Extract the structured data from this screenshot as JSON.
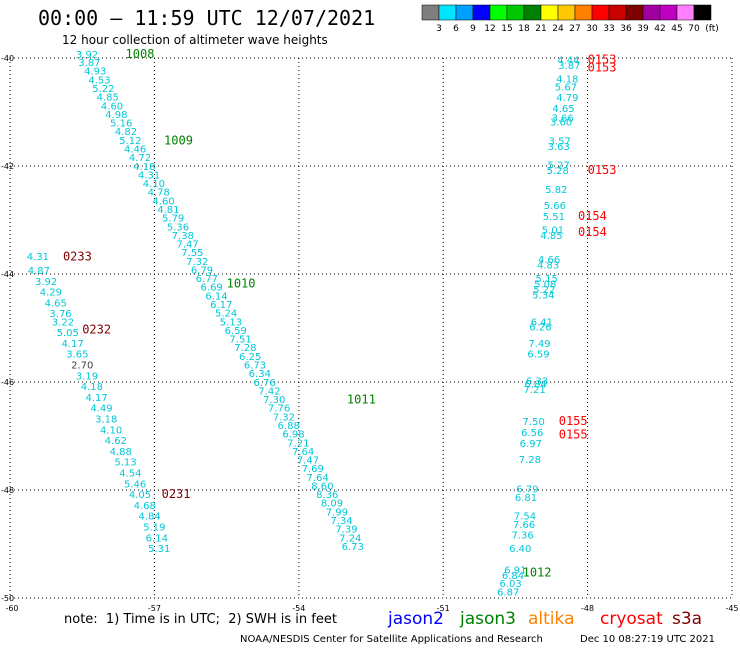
{
  "header": {
    "title": "00:00 – 11:59 UTC 12/07/2021",
    "subtitle": "12 hour collection of altimeter wave heights"
  },
  "colorbar": {
    "colors": [
      "#7f7f7f",
      "#00e5ff",
      "#00a0ff",
      "#0000ff",
      "#00ff00",
      "#00c800",
      "#008000",
      "#ffff00",
      "#ffc800",
      "#ff8000",
      "#ff0000",
      "#c80000",
      "#800000",
      "#a000a0",
      "#c000c0",
      "#ff80ff",
      "#000000"
    ],
    "labels": [
      "3",
      "6",
      "9",
      "12",
      "15",
      "18",
      "21",
      "24",
      "27",
      "30",
      "33",
      "36",
      "39",
      "42",
      "45",
      "70"
    ],
    "unit": "(ft)"
  },
  "note": "note:  1) Time is in UTC;  2) SWH is in feet",
  "satellites": [
    {
      "name": "jason2",
      "color": "#0000ff"
    },
    {
      "name": "jason3",
      "color": "#008000"
    },
    {
      "name": "altika",
      "color": "#ff8000"
    },
    {
      "name": "cryosat",
      "color": "#ff0000"
    },
    {
      "name": "s3a",
      "color": "#800000"
    }
  ],
  "footer": {
    "left": "NOAA/NESDIS Center for Satellite Applications and Research",
    "right": "Dec 10 08:27:19 UTC 2021"
  },
  "chart_data": {
    "type": "scatter",
    "xlim": [
      -60,
      -45
    ],
    "ylim": [
      -50,
      -40
    ],
    "xticks": [
      -60,
      -57,
      -54,
      -51,
      -48,
      -45
    ],
    "yticks": [
      -40,
      -42,
      -44,
      -46,
      -48,
      -50
    ],
    "xtick_labels": [
      "-60",
      "-57",
      "-54",
      "-51",
      "-48",
      "-45"
    ],
    "ytick_labels": [
      "-40",
      "-42",
      "-44",
      "-46",
      "-48",
      "-50"
    ],
    "grid": true,
    "point_color": "#00c8d8",
    "dark_point_color": "#404040",
    "tracks": [
      {
        "name": "jason3 track",
        "points": [
          [
            -58.4,
            -40.0,
            "3.92"
          ],
          [
            -58.35,
            -40.15,
            "3.87"
          ],
          [
            -58.23,
            -40.31,
            "4.93"
          ],
          [
            -58.14,
            -40.47,
            "4.53"
          ],
          [
            -58.06,
            -40.63,
            "5.22"
          ],
          [
            -57.97,
            -40.79,
            "4.85"
          ],
          [
            -57.88,
            -40.95,
            "4.60"
          ],
          [
            -57.79,
            -41.11,
            "4.98"
          ],
          [
            -57.69,
            -41.27,
            "5.16"
          ],
          [
            -57.59,
            -41.43,
            "4.82"
          ],
          [
            -57.5,
            -41.59,
            "5.12"
          ],
          [
            -57.4,
            -41.75,
            "4.46"
          ],
          [
            -57.3,
            -41.91,
            "4.72"
          ],
          [
            -57.21,
            -42.07,
            "4.18"
          ],
          [
            -57.11,
            -42.23,
            "4.31"
          ],
          [
            -57.01,
            -42.39,
            "4.10"
          ],
          [
            -56.91,
            -42.55,
            "4.78"
          ],
          [
            -56.81,
            -42.71,
            "4.60"
          ],
          [
            -56.71,
            -42.87,
            "4.81"
          ],
          [
            -56.61,
            -43.03,
            "5.79"
          ],
          [
            -56.51,
            -43.19,
            "5.36"
          ],
          [
            -56.41,
            -43.35,
            "7.38"
          ],
          [
            -56.31,
            -43.51,
            "7.47"
          ],
          [
            -56.21,
            -43.67,
            "7.55"
          ],
          [
            -56.11,
            -43.83,
            "7.32"
          ],
          [
            -56.01,
            -43.99,
            "6.79"
          ],
          [
            -55.91,
            -44.15,
            "6.77"
          ],
          [
            -55.81,
            -44.31,
            "6.69"
          ],
          [
            -55.71,
            -44.47,
            "6.14"
          ],
          [
            -55.61,
            -44.63,
            "6.17"
          ],
          [
            -55.51,
            -44.79,
            "5.24"
          ],
          [
            -55.41,
            -44.95,
            "5.13"
          ],
          [
            -55.31,
            -45.11,
            "6.59"
          ],
          [
            -55.21,
            -45.27,
            "7.51"
          ],
          [
            -55.11,
            -45.43,
            "7.28"
          ],
          [
            -55.01,
            -45.59,
            "6.25"
          ],
          [
            -54.91,
            -45.75,
            "6.73"
          ],
          [
            -54.81,
            -45.91,
            "6.34"
          ],
          [
            -54.71,
            -46.07,
            "6.76"
          ],
          [
            -54.61,
            -46.23,
            "7.42"
          ],
          [
            -54.51,
            -46.39,
            "7.30"
          ],
          [
            -54.41,
            -46.55,
            "7.76"
          ],
          [
            -54.31,
            -46.71,
            "7.32"
          ],
          [
            -54.21,
            -46.87,
            "6.88"
          ],
          [
            -54.11,
            -47.03,
            "6.98"
          ],
          [
            -54.01,
            -47.19,
            "7.21"
          ],
          [
            -53.91,
            -47.35,
            "7.64"
          ],
          [
            -53.81,
            -47.51,
            "7.47"
          ],
          [
            -53.71,
            -47.67,
            "7.69"
          ],
          [
            -53.61,
            -47.83,
            "7.64"
          ],
          [
            -53.51,
            -47.99,
            "8.60"
          ],
          [
            -53.41,
            -48.15,
            "8.36"
          ],
          [
            -53.31,
            -48.31,
            "8.09"
          ],
          [
            -53.21,
            -48.47,
            "7.99"
          ],
          [
            -53.11,
            -48.63,
            "7.34"
          ],
          [
            -53.01,
            -48.79,
            "7.39"
          ],
          [
            -52.93,
            -48.95,
            "7.24"
          ],
          [
            -52.88,
            -49.11,
            "6.73"
          ]
        ]
      },
      {
        "name": "s3a track",
        "points": [
          [
            -59.42,
            -43.74,
            "4.31"
          ],
          [
            -59.4,
            -44.0,
            "4.87"
          ],
          [
            -59.25,
            -44.2,
            "3.92"
          ],
          [
            -59.15,
            -44.4,
            "4.29"
          ],
          [
            -59.05,
            -44.6,
            "4.65"
          ],
          [
            -58.95,
            -44.8,
            "3.76"
          ],
          [
            -58.9,
            -44.95,
            "3.22"
          ],
          [
            -58.8,
            -45.15,
            "5.05"
          ],
          [
            -58.7,
            -45.35,
            "4.17"
          ],
          [
            -58.6,
            -45.55,
            "3.65"
          ],
          [
            -58.5,
            -45.75,
            "2.70"
          ],
          [
            -58.4,
            -45.95,
            "3.19"
          ],
          [
            -58.3,
            -46.15,
            "4.18"
          ],
          [
            -58.2,
            -46.35,
            "4.17"
          ],
          [
            -58.1,
            -46.55,
            "4.49"
          ],
          [
            -58.0,
            -46.75,
            "3.18"
          ],
          [
            -57.9,
            -46.95,
            "4.10"
          ],
          [
            -57.8,
            -47.15,
            "4.62"
          ],
          [
            -57.7,
            -47.35,
            "4.88"
          ],
          [
            -57.6,
            -47.55,
            "5.13"
          ],
          [
            -57.5,
            -47.75,
            "4.54"
          ],
          [
            -57.4,
            -47.95,
            "5.46"
          ],
          [
            -57.3,
            -48.15,
            "4.05"
          ],
          [
            -57.2,
            -48.35,
            "4.68"
          ],
          [
            -57.1,
            -48.55,
            "4.84"
          ],
          [
            -57.0,
            -48.75,
            "5.19"
          ],
          [
            -56.95,
            -48.95,
            "6.14"
          ],
          [
            -56.9,
            -49.15,
            "5.31"
          ]
        ]
      },
      {
        "name": "cryosat track",
        "points": [
          [
            -48.4,
            -40.1,
            "4.44"
          ],
          [
            -48.38,
            -40.2,
            "3.87"
          ],
          [
            -48.42,
            -40.45,
            "4.18"
          ],
          [
            -48.45,
            -40.6,
            "5.67"
          ],
          [
            -48.42,
            -40.8,
            "4.79"
          ],
          [
            -48.5,
            -41.0,
            "4.65"
          ],
          [
            -48.52,
            -41.18,
            "3.66"
          ],
          [
            -48.55,
            -41.25,
            "3.60"
          ],
          [
            -48.58,
            -41.6,
            "3.57"
          ],
          [
            -48.6,
            -41.7,
            "3.63"
          ],
          [
            -48.6,
            -42.05,
            "5.27"
          ],
          [
            -48.62,
            -42.15,
            "5.28"
          ],
          [
            -48.65,
            -42.5,
            "5.82"
          ],
          [
            -48.68,
            -42.8,
            "5.66"
          ],
          [
            -48.7,
            -43.0,
            "5.51"
          ],
          [
            -48.72,
            -43.25,
            "5.01"
          ],
          [
            -48.75,
            -43.35,
            "4.85"
          ],
          [
            -48.8,
            -43.8,
            "4.66"
          ],
          [
            -48.82,
            -43.9,
            "4.83"
          ],
          [
            -48.85,
            -44.15,
            "5.15"
          ],
          [
            -48.88,
            -44.25,
            "5.08"
          ],
          [
            -48.9,
            -44.35,
            "5.22"
          ],
          [
            -48.92,
            -44.45,
            "5.34"
          ],
          [
            -48.95,
            -44.95,
            "6.41"
          ],
          [
            -48.98,
            -45.05,
            "6.26"
          ],
          [
            -49.0,
            -45.35,
            "7.49"
          ],
          [
            -49.02,
            -45.55,
            "6.59"
          ],
          [
            -49.05,
            -46.05,
            "6.33"
          ],
          [
            -49.08,
            -46.1,
            "6.84"
          ],
          [
            -49.1,
            -46.2,
            "7.21"
          ],
          [
            -49.12,
            -46.8,
            "7.50"
          ],
          [
            -49.15,
            -47.0,
            "6.56"
          ],
          [
            -49.18,
            -47.2,
            "6.97"
          ],
          [
            -49.2,
            -47.5,
            "7.28"
          ],
          [
            -49.25,
            -48.05,
            "6.79"
          ],
          [
            -49.28,
            -48.2,
            "6.81"
          ],
          [
            -49.3,
            -48.55,
            "7.54"
          ],
          [
            -49.32,
            -48.7,
            "7.66"
          ],
          [
            -49.35,
            -48.9,
            "7.36"
          ],
          [
            -49.4,
            -49.15,
            "6.40"
          ],
          [
            -49.5,
            -49.55,
            "6.91"
          ],
          [
            -49.55,
            -49.65,
            "6.84"
          ],
          [
            -49.6,
            -49.8,
            "6.03"
          ],
          [
            -49.65,
            -49.95,
            "6.87"
          ]
        ]
      }
    ],
    "time_labels": [
      {
        "lon": -57.6,
        "lat": -40.0,
        "text": "1008",
        "color": "#008000"
      },
      {
        "lon": -56.8,
        "lat": -41.6,
        "text": "1009",
        "color": "#008000"
      },
      {
        "lon": -55.5,
        "lat": -44.25,
        "text": "1010",
        "color": "#008000"
      },
      {
        "lon": -53.0,
        "lat": -46.4,
        "text": "1011",
        "color": "#008000"
      },
      {
        "lon": -49.35,
        "lat": -49.6,
        "text": "1012",
        "color": "#008000"
      },
      {
        "lon": -58.9,
        "lat": -43.75,
        "text": "0233",
        "color": "#800000"
      },
      {
        "lon": -58.5,
        "lat": -45.1,
        "text": "0232",
        "color": "#800000"
      },
      {
        "lon": -56.85,
        "lat": -48.15,
        "text": "0231",
        "color": "#800000"
      },
      {
        "lon": -48.0,
        "lat": -40.1,
        "text": "0153",
        "color": "#ff0000"
      },
      {
        "lon": -48.0,
        "lat": -40.25,
        "text": "0153",
        "color": "#ff0000"
      },
      {
        "lon": -48.0,
        "lat": -42.15,
        "text": "0153",
        "color": "#ff0000"
      },
      {
        "lon": -48.2,
        "lat": -43.0,
        "text": "0154",
        "color": "#ff0000"
      },
      {
        "lon": -48.2,
        "lat": -43.3,
        "text": "0154",
        "color": "#ff0000"
      },
      {
        "lon": -48.6,
        "lat": -46.8,
        "text": "0155",
        "color": "#ff0000"
      },
      {
        "lon": -48.6,
        "lat": -47.05,
        "text": "0155",
        "color": "#ff0000"
      }
    ]
  }
}
